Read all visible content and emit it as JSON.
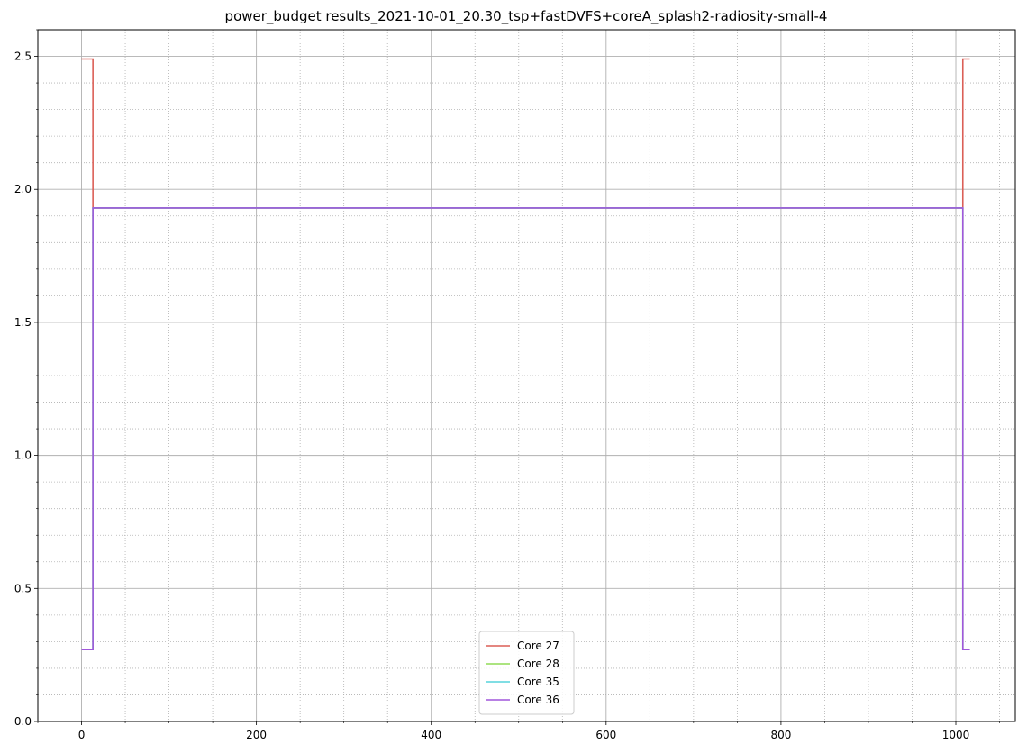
{
  "chart_data": {
    "type": "line",
    "title": "power_budget results_2021-10-01_20.30_tsp+fastDVFS+coreA_splash2-radiosity-small-4",
    "xlabel": "",
    "ylabel": "",
    "xlim": [
      -50,
      1068
    ],
    "ylim": [
      0,
      2.6
    ],
    "x_ticks": [
      0,
      200,
      400,
      600,
      800,
      1000
    ],
    "x_tick_labels": [
      "0",
      "200",
      "400",
      "600",
      "800",
      "1000"
    ],
    "y_ticks": [
      0.0,
      0.5,
      1.0,
      1.5,
      2.0,
      2.5
    ],
    "y_tick_labels": [
      "0.0",
      "0.5",
      "1.0",
      "1.5",
      "2.0",
      "2.5"
    ],
    "x_minor_step": 50,
    "y_minor_step": 0.1,
    "grid": "major solid, minor dotted",
    "legend_position": "bottom-center",
    "series": [
      {
        "name": "Core 27",
        "color": "#db5f57",
        "points": [
          [
            0,
            2.49
          ],
          [
            13,
            2.49
          ],
          [
            13,
            1.93
          ],
          [
            1008,
            1.93
          ],
          [
            1008,
            2.49
          ],
          [
            1016,
            2.49
          ]
        ]
      },
      {
        "name": "Core 28",
        "color": "#91db57",
        "points": [
          [
            0,
            0.27
          ],
          [
            13,
            0.27
          ],
          [
            13,
            1.93
          ],
          [
            1008,
            1.93
          ],
          [
            1008,
            0.27
          ],
          [
            1016,
            0.27
          ]
        ]
      },
      {
        "name": "Core 35",
        "color": "#57d3db",
        "points": [
          [
            0,
            0.27
          ],
          [
            13,
            0.27
          ],
          [
            13,
            1.93
          ],
          [
            1008,
            1.93
          ],
          [
            1008,
            0.27
          ],
          [
            1016,
            0.27
          ]
        ]
      },
      {
        "name": "Core 36",
        "color": "#a157db",
        "points": [
          [
            0,
            0.27
          ],
          [
            13,
            0.27
          ],
          [
            13,
            1.93
          ],
          [
            1008,
            1.93
          ],
          [
            1008,
            0.27
          ],
          [
            1016,
            0.27
          ]
        ]
      }
    ]
  }
}
